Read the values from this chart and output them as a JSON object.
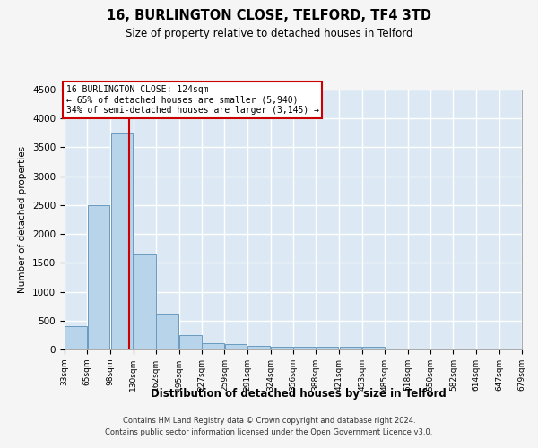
{
  "title": "16, BURLINGTON CLOSE, TELFORD, TF4 3TD",
  "subtitle": "Size of property relative to detached houses in Telford",
  "xlabel": "Distribution of detached houses by size in Telford",
  "ylabel": "Number of detached properties",
  "bin_edges": [
    33,
    65,
    98,
    130,
    162,
    195,
    227,
    259,
    291,
    324,
    356,
    388,
    421,
    453,
    485,
    518,
    550,
    582,
    614,
    647,
    679
  ],
  "bar_heights": [
    400,
    2500,
    3750,
    1650,
    600,
    250,
    110,
    100,
    55,
    50,
    50,
    50,
    50,
    50,
    0,
    0,
    0,
    0,
    0,
    0
  ],
  "bar_color": "#b8d4ea",
  "bar_edge_color": "#6a9abf",
  "property_size": 124,
  "vline_color": "#cc0000",
  "annotation_text": "16 BURLINGTON CLOSE: 124sqm\n← 65% of detached houses are smaller (5,940)\n34% of semi-detached houses are larger (3,145) →",
  "annotation_box_color": "#ffffff",
  "annotation_box_edge_color": "#cc0000",
  "ylim": [
    0,
    4500
  ],
  "yticks": [
    0,
    500,
    1000,
    1500,
    2000,
    2500,
    3000,
    3500,
    4000,
    4500
  ],
  "background_color": "#dce9f5",
  "grid_color": "#ffffff",
  "figure_bg": "#f5f5f5",
  "footer_line1": "Contains HM Land Registry data © Crown copyright and database right 2024.",
  "footer_line2": "Contains public sector information licensed under the Open Government Licence v3.0."
}
